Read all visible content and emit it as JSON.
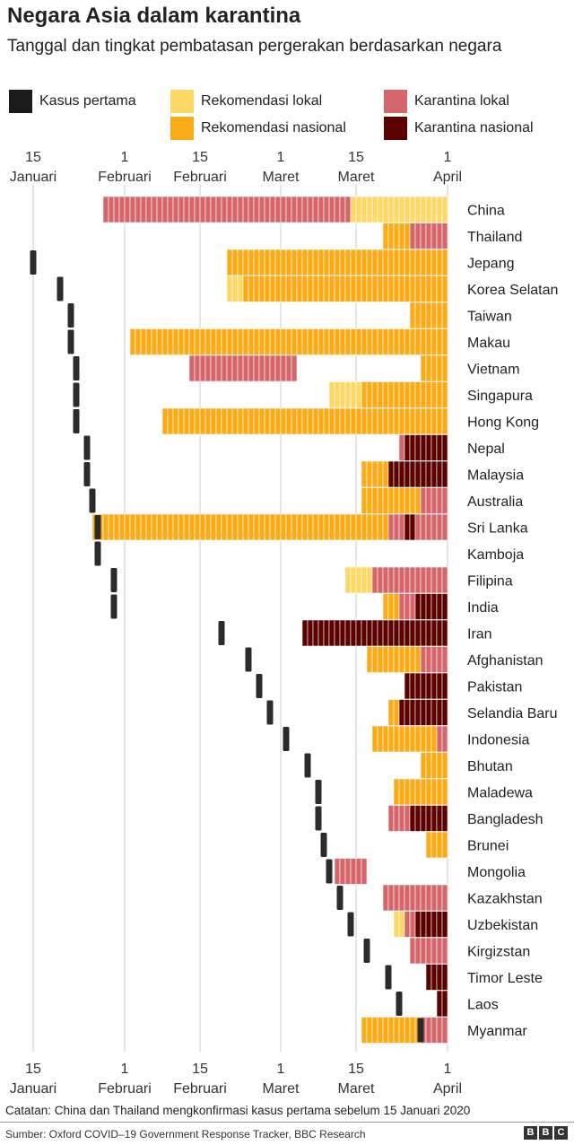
{
  "title": "Negara Asia dalam karantina",
  "subtitle": "Tanggal dan tingkat pembatasan pergerakan berdasarkan negara",
  "legend": [
    {
      "label": "Kasus pertama",
      "color": "#1a1a1a"
    },
    {
      "label": "Rekomendasi lokal",
      "color": "#fdd866"
    },
    {
      "label": "Rekomendasi nasional",
      "color": "#faab18"
    },
    {
      "label": "Karantina lokal",
      "color": "#d5676c"
    },
    {
      "label": "Karantina nasional",
      "color": "#5c0000"
    }
  ],
  "colors": {
    "first_case": "#2b2b2b",
    "rekomendasi_lokal": "#fdd866",
    "rekomendasi_nasional": "#faab18",
    "karantina_lokal": "#d5676c",
    "karantina_nasional": "#5c0000",
    "grid": "#cccccc"
  },
  "chart_data": {
    "type": "timeline",
    "title": "Negara Asia dalam karantina",
    "x_unit": "tanggal 2020 (hari sejak 1 Januari)",
    "x_range": [
      11,
      92
    ],
    "ticks": [
      {
        "day": 15,
        "line1": "15",
        "line2": "Januari"
      },
      {
        "day": 32,
        "line1": "1",
        "line2": "Februari"
      },
      {
        "day": 46,
        "line1": "15",
        "line2": "Februari"
      },
      {
        "day": 61,
        "line1": "1",
        "line2": "Maret"
      },
      {
        "day": 75,
        "line1": "15",
        "line2": "Maret"
      },
      {
        "day": 92,
        "line1": "1",
        "line2": "April"
      }
    ],
    "countries": [
      {
        "name": "China",
        "first_case": null,
        "segments": [
          [
            28,
            74,
            "kl"
          ],
          [
            74,
            92,
            "rl"
          ]
        ]
      },
      {
        "name": "Thailand",
        "first_case": null,
        "segments": [
          [
            80,
            85,
            "rn"
          ],
          [
            85,
            92,
            "kl"
          ]
        ]
      },
      {
        "name": "Jepang",
        "first_case": 15,
        "segments": [
          [
            51,
            92,
            "rn"
          ]
        ]
      },
      {
        "name": "Korea Selatan",
        "first_case": 20,
        "segments": [
          [
            51,
            54,
            "rl"
          ],
          [
            54,
            92,
            "rn"
          ]
        ]
      },
      {
        "name": "Taiwan",
        "first_case": 22,
        "segments": [
          [
            85,
            92,
            "rn"
          ]
        ]
      },
      {
        "name": "Makau",
        "first_case": 22,
        "segments": [
          [
            33,
            92,
            "rn"
          ]
        ]
      },
      {
        "name": "Vietnam",
        "first_case": 23,
        "segments": [
          [
            44,
            64,
            "kl"
          ],
          [
            87,
            92,
            "rn"
          ]
        ]
      },
      {
        "name": "Singapura",
        "first_case": 23,
        "segments": [
          [
            70,
            76,
            "rl"
          ],
          [
            76,
            92,
            "rn"
          ]
        ]
      },
      {
        "name": "Hong Kong",
        "first_case": 23,
        "segments": [
          [
            39,
            92,
            "rn"
          ]
        ]
      },
      {
        "name": "Nepal",
        "first_case": 25,
        "segments": [
          [
            83,
            84,
            "kl"
          ],
          [
            84,
            92,
            "kn"
          ]
        ]
      },
      {
        "name": "Malaysia",
        "first_case": 25,
        "segments": [
          [
            76,
            81,
            "rn"
          ],
          [
            81,
            92,
            "kn"
          ]
        ]
      },
      {
        "name": "Australia",
        "first_case": 26,
        "segments": [
          [
            76,
            87,
            "rn"
          ],
          [
            87,
            92,
            "kl"
          ]
        ]
      },
      {
        "name": "Sri Lanka",
        "first_case": 27,
        "segments": [
          [
            26,
            81,
            "rn"
          ],
          [
            81,
            84,
            "kl"
          ],
          [
            84,
            86,
            "kn"
          ],
          [
            86,
            92,
            "kl"
          ]
        ]
      },
      {
        "name": "Kamboja",
        "first_case": 27,
        "segments": []
      },
      {
        "name": "Filipina",
        "first_case": 30,
        "segments": [
          [
            73,
            78,
            "rl"
          ],
          [
            78,
            92,
            "kl"
          ]
        ]
      },
      {
        "name": "India",
        "first_case": 30,
        "segments": [
          [
            80,
            83,
            "rn"
          ],
          [
            83,
            86,
            "kl"
          ],
          [
            86,
            92,
            "kn"
          ]
        ]
      },
      {
        "name": "Iran",
        "first_case": 50,
        "segments": [
          [
            65,
            92,
            "kn"
          ]
        ]
      },
      {
        "name": "Afghanistan",
        "first_case": 55,
        "segments": [
          [
            77,
            87,
            "rn"
          ],
          [
            87,
            92,
            "kl"
          ]
        ]
      },
      {
        "name": "Pakistan",
        "first_case": 57,
        "segments": [
          [
            84,
            92,
            "kn"
          ]
        ]
      },
      {
        "name": "Selandia Baru",
        "first_case": 59,
        "segments": [
          [
            81,
            83,
            "rn"
          ],
          [
            83,
            92,
            "kn"
          ]
        ]
      },
      {
        "name": "Indonesia",
        "first_case": 62,
        "segments": [
          [
            78,
            90,
            "rn"
          ],
          [
            90,
            92,
            "kl"
          ]
        ]
      },
      {
        "name": "Bhutan",
        "first_case": 66,
        "segments": [
          [
            87,
            92,
            "rn"
          ]
        ]
      },
      {
        "name": "Maladewa",
        "first_case": 68,
        "segments": [
          [
            82,
            92,
            "rn"
          ]
        ]
      },
      {
        "name": "Bangladesh",
        "first_case": 68,
        "segments": [
          [
            81,
            85,
            "kl"
          ],
          [
            85,
            92,
            "kn"
          ]
        ]
      },
      {
        "name": "Brunei",
        "first_case": 69,
        "segments": [
          [
            88,
            92,
            "rn"
          ]
        ]
      },
      {
        "name": "Mongolia",
        "first_case": 70,
        "segments": [
          [
            71,
            77,
            "kl"
          ]
        ]
      },
      {
        "name": "Kazakhstan",
        "first_case": 72,
        "segments": [
          [
            80,
            92,
            "kl"
          ]
        ]
      },
      {
        "name": "Uzbekistan",
        "first_case": 74,
        "segments": [
          [
            82,
            84,
            "rl"
          ],
          [
            84,
            86,
            "kl"
          ],
          [
            86,
            92,
            "kn"
          ]
        ]
      },
      {
        "name": "Kirgizstan",
        "first_case": 77,
        "segments": [
          [
            85,
            92,
            "kl"
          ]
        ]
      },
      {
        "name": "Timor Leste",
        "first_case": 81,
        "segments": [
          [
            88,
            92,
            "kn"
          ]
        ]
      },
      {
        "name": "Laos",
        "first_case": 83,
        "segments": [
          [
            90,
            92,
            "kn"
          ]
        ]
      },
      {
        "name": "Myanmar",
        "first_case": 87,
        "segments": [
          [
            76,
            87,
            "rn"
          ],
          [
            87,
            92,
            "kl"
          ]
        ]
      }
    ]
  },
  "note": "Catatan: China dan Thailand mengkonfirmasi kasus pertama sebelum 15 Januari 2020",
  "source": "Sumber: Oxford COVID–19 Government Response Tracker, BBC Research",
  "logo": [
    "B",
    "B",
    "C"
  ]
}
